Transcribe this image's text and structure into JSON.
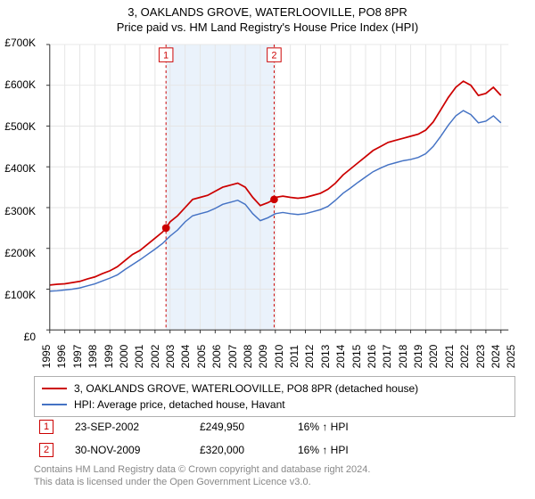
{
  "title": "3, OAKLANDS GROVE, WATERLOOVILLE, PO8 8PR",
  "subtitle": "Price paid vs. HM Land Registry's House Price Index (HPI)",
  "chart": {
    "type": "line",
    "background_color": "#ffffff",
    "grid_color": "#e5e5e5",
    "axis_color": "#333333",
    "label_fontsize": 12,
    "x_years": [
      1995,
      1996,
      1997,
      1998,
      1999,
      2000,
      2001,
      2002,
      2003,
      2004,
      2005,
      2006,
      2007,
      2008,
      2009,
      2010,
      2011,
      2012,
      2013,
      2014,
      2015,
      2016,
      2017,
      2018,
      2019,
      2020,
      2021,
      2022,
      2023,
      2024,
      2025
    ],
    "y_ticks": [
      0,
      100000,
      200000,
      300000,
      400000,
      500000,
      600000,
      700000
    ],
    "y_tick_labels": [
      "£0",
      "£100K",
      "£200K",
      "£300K",
      "£400K",
      "£500K",
      "£600K",
      "£700K"
    ],
    "ylim": [
      0,
      700000
    ],
    "xlim": [
      1995,
      2025.5
    ],
    "series": [
      {
        "name": "3, OAKLANDS GROVE, WATERLOOVILLE, PO8 8PR (detached house)",
        "color": "#cc0000",
        "line_width": 1.8,
        "data": [
          [
            1995,
            110000
          ],
          [
            1995.5,
            112000
          ],
          [
            1996,
            113000
          ],
          [
            1996.5,
            116000
          ],
          [
            1997,
            119000
          ],
          [
            1997.5,
            125000
          ],
          [
            1998,
            130000
          ],
          [
            1998.5,
            138000
          ],
          [
            1999,
            145000
          ],
          [
            1999.5,
            155000
          ],
          [
            2000,
            170000
          ],
          [
            2000.5,
            185000
          ],
          [
            2001,
            195000
          ],
          [
            2001.5,
            210000
          ],
          [
            2002,
            225000
          ],
          [
            2002.5,
            240000
          ],
          [
            2002.73,
            249950
          ],
          [
            2003,
            265000
          ],
          [
            2003.5,
            280000
          ],
          [
            2004,
            300000
          ],
          [
            2004.5,
            320000
          ],
          [
            2005,
            325000
          ],
          [
            2005.5,
            330000
          ],
          [
            2006,
            340000
          ],
          [
            2006.5,
            350000
          ],
          [
            2007,
            355000
          ],
          [
            2007.5,
            360000
          ],
          [
            2008,
            350000
          ],
          [
            2008.5,
            325000
          ],
          [
            2009,
            305000
          ],
          [
            2009.5,
            312000
          ],
          [
            2009.92,
            320000
          ],
          [
            2010,
            325000
          ],
          [
            2010.5,
            328000
          ],
          [
            2011,
            325000
          ],
          [
            2011.5,
            323000
          ],
          [
            2012,
            325000
          ],
          [
            2012.5,
            330000
          ],
          [
            2013,
            335000
          ],
          [
            2013.5,
            345000
          ],
          [
            2014,
            360000
          ],
          [
            2014.5,
            380000
          ],
          [
            2015,
            395000
          ],
          [
            2015.5,
            410000
          ],
          [
            2016,
            425000
          ],
          [
            2016.5,
            440000
          ],
          [
            2017,
            450000
          ],
          [
            2017.5,
            460000
          ],
          [
            2018,
            465000
          ],
          [
            2018.5,
            470000
          ],
          [
            2019,
            475000
          ],
          [
            2019.5,
            480000
          ],
          [
            2020,
            490000
          ],
          [
            2020.5,
            510000
          ],
          [
            2021,
            540000
          ],
          [
            2021.5,
            570000
          ],
          [
            2022,
            595000
          ],
          [
            2022.5,
            610000
          ],
          [
            2023,
            600000
          ],
          [
            2023.5,
            575000
          ],
          [
            2024,
            580000
          ],
          [
            2024.5,
            595000
          ],
          [
            2025,
            575000
          ]
        ]
      },
      {
        "name": "HPI: Average price, detached house, Havant",
        "color": "#4472c4",
        "line_width": 1.5,
        "data": [
          [
            1995,
            95000
          ],
          [
            1995.5,
            96000
          ],
          [
            1996,
            98000
          ],
          [
            1996.5,
            100000
          ],
          [
            1997,
            103000
          ],
          [
            1997.5,
            108000
          ],
          [
            1998,
            113000
          ],
          [
            1998.5,
            120000
          ],
          [
            1999,
            127000
          ],
          [
            1999.5,
            135000
          ],
          [
            2000,
            148000
          ],
          [
            2000.5,
            160000
          ],
          [
            2001,
            172000
          ],
          [
            2001.5,
            185000
          ],
          [
            2002,
            198000
          ],
          [
            2002.5,
            212000
          ],
          [
            2003,
            230000
          ],
          [
            2003.5,
            245000
          ],
          [
            2004,
            265000
          ],
          [
            2004.5,
            280000
          ],
          [
            2005,
            285000
          ],
          [
            2005.5,
            290000
          ],
          [
            2006,
            298000
          ],
          [
            2006.5,
            308000
          ],
          [
            2007,
            313000
          ],
          [
            2007.5,
            318000
          ],
          [
            2008,
            308000
          ],
          [
            2008.5,
            285000
          ],
          [
            2009,
            268000
          ],
          [
            2009.5,
            275000
          ],
          [
            2010,
            285000
          ],
          [
            2010.5,
            288000
          ],
          [
            2011,
            285000
          ],
          [
            2011.5,
            283000
          ],
          [
            2012,
            285000
          ],
          [
            2012.5,
            290000
          ],
          [
            2013,
            295000
          ],
          [
            2013.5,
            303000
          ],
          [
            2014,
            318000
          ],
          [
            2014.5,
            335000
          ],
          [
            2015,
            348000
          ],
          [
            2015.5,
            362000
          ],
          [
            2016,
            375000
          ],
          [
            2016.5,
            388000
          ],
          [
            2017,
            397000
          ],
          [
            2017.5,
            405000
          ],
          [
            2018,
            410000
          ],
          [
            2018.5,
            415000
          ],
          [
            2019,
            418000
          ],
          [
            2019.5,
            423000
          ],
          [
            2020,
            432000
          ],
          [
            2020.5,
            450000
          ],
          [
            2021,
            475000
          ],
          [
            2021.5,
            502000
          ],
          [
            2022,
            525000
          ],
          [
            2022.5,
            538000
          ],
          [
            2023,
            528000
          ],
          [
            2023.5,
            508000
          ],
          [
            2024,
            512000
          ],
          [
            2024.5,
            525000
          ],
          [
            2025,
            508000
          ]
        ]
      }
    ],
    "sale_markers": [
      {
        "n": "1",
        "year": 2002.73,
        "price": 249950,
        "band_color": "#eaf2fb",
        "line_color": "#cc0000"
      },
      {
        "n": "2",
        "year": 2009.92,
        "price": 320000,
        "band_color": "#eaf2fb",
        "line_color": "#cc0000"
      }
    ],
    "sale_band_start": 2002.73,
    "sale_band_end": 2009.92
  },
  "legend": [
    {
      "color": "#cc0000",
      "label": "3, OAKLANDS GROVE, WATERLOOVILLE, PO8 8PR (detached house)"
    },
    {
      "color": "#4472c4",
      "label": "HPI: Average price, detached house, Havant"
    }
  ],
  "sales": [
    {
      "n": "1",
      "date": "23-SEP-2002",
      "price": "£249,950",
      "diff": "16% ↑ HPI"
    },
    {
      "n": "2",
      "date": "30-NOV-2009",
      "price": "£320,000",
      "diff": "16% ↑ HPI"
    }
  ],
  "footer_line1": "Contains HM Land Registry data © Crown copyright and database right 2024.",
  "footer_line2": "This data is licensed under the Open Government Licence v3.0."
}
